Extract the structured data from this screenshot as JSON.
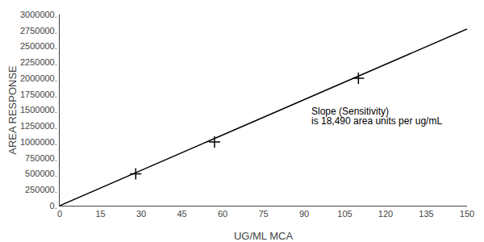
{
  "chart_data": {
    "type": "scatter",
    "xlabel": "UG/ML MCA",
    "ylabel": "AREA RESPONSE",
    "series": [
      {
        "type": "line",
        "color": "#000000",
        "line_style": "solid",
        "x": [
          0,
          150
        ],
        "values": [
          0,
          2773500
        ]
      },
      {
        "type": "scatter",
        "color": "#000000",
        "marker": "plus",
        "x": [
          28,
          57,
          110
        ],
        "values": [
          500000,
          1000000,
          2000000
        ]
      }
    ],
    "xlim": [
      0,
      150
    ],
    "xticks": [
      0,
      15,
      30,
      45,
      60,
      75,
      90,
      105,
      120,
      135,
      150
    ],
    "ylim": [
      0,
      3000000
    ],
    "yticks": [
      {
        "value": 0,
        "label": "0."
      },
      {
        "value": 250000,
        "label": "250000."
      },
      {
        "value": 500000,
        "label": "500000."
      },
      {
        "value": 750000,
        "label": "750000."
      },
      {
        "value": 1000000,
        "label": "1000000."
      },
      {
        "value": 1250000,
        "label": "1250000."
      },
      {
        "value": 1500000,
        "label": "1500000."
      },
      {
        "value": 1750000,
        "label": "1750000."
      },
      {
        "value": 2000000,
        "label": "2000000."
      },
      {
        "value": 2250000,
        "label": "2250000."
      },
      {
        "value": 2500000,
        "label": "2500000."
      },
      {
        "value": 2750000,
        "label": "2750000."
      },
      {
        "value": 3000000,
        "label": "3000000."
      }
    ],
    "annotations": [
      {
        "text": "Slope (Sensitivity)",
        "x": 92,
        "y": 1480000
      },
      {
        "text": "is 18,490 area units per ug/mL",
        "x": 92,
        "y": 1330000
      }
    ],
    "grid": false
  }
}
